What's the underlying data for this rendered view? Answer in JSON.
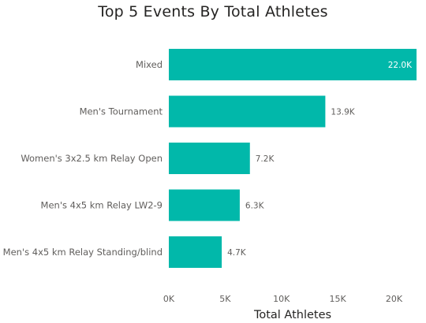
{
  "chart_data": {
    "type": "bar",
    "orientation": "horizontal",
    "title": "Top 5 Events By Total Athletes",
    "xlabel": "Total Athletes",
    "ylabel": "",
    "categories": [
      "Mixed",
      "Men's Tournament",
      "Women's 3x2.5 km Relay Open",
      "Men's 4x5 km Relay LW2-9",
      "Men's 4x5 km Relay Standing/blind"
    ],
    "values": [
      22000,
      13900,
      7200,
      6300,
      4700
    ],
    "data_labels": [
      "22.0K",
      "13.9K",
      "7.2K",
      "6.3K",
      "4.7K"
    ],
    "xlim": [
      0,
      22000
    ],
    "x_ticks": [
      0,
      5000,
      10000,
      15000,
      20000
    ],
    "x_tick_labels": [
      "0K",
      "5K",
      "10K",
      "15K",
      "20K"
    ],
    "grid": false,
    "bar_color": "#01B8AA"
  }
}
